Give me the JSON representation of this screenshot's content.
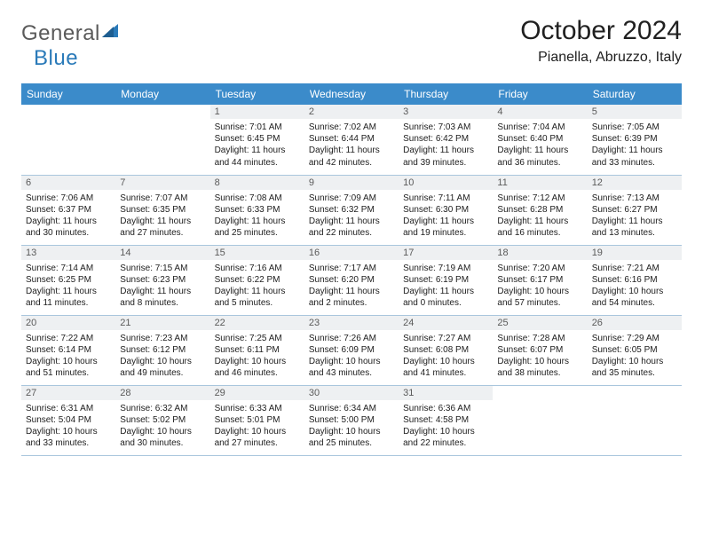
{
  "brand": {
    "word1": "General",
    "word2": "Blue"
  },
  "title": "October 2024",
  "location": "Pianella, Abruzzo, Italy",
  "colors": {
    "header_bg": "#3b8bca",
    "header_fg": "#ffffff",
    "daynum_bg": "#eef0f2",
    "daynum_fg": "#5a5a5a",
    "row_border": "#a9c6dd",
    "text": "#202020",
    "logo_gray": "#5a5a5a",
    "logo_blue": "#2a7ab9",
    "page_bg": "#ffffff"
  },
  "typography": {
    "title_fontsize": 30,
    "location_fontsize": 16,
    "dayhead_fontsize": 12,
    "body_fontsize": 10
  },
  "dayNames": [
    "Sunday",
    "Monday",
    "Tuesday",
    "Wednesday",
    "Thursday",
    "Friday",
    "Saturday"
  ],
  "weeks": [
    [
      {
        "empty": true
      },
      {
        "empty": true
      },
      {
        "n": "1",
        "sr": "Sunrise: 7:01 AM",
        "ss": "Sunset: 6:45 PM",
        "d1": "Daylight: 11 hours",
        "d2": "and 44 minutes."
      },
      {
        "n": "2",
        "sr": "Sunrise: 7:02 AM",
        "ss": "Sunset: 6:44 PM",
        "d1": "Daylight: 11 hours",
        "d2": "and 42 minutes."
      },
      {
        "n": "3",
        "sr": "Sunrise: 7:03 AM",
        "ss": "Sunset: 6:42 PM",
        "d1": "Daylight: 11 hours",
        "d2": "and 39 minutes."
      },
      {
        "n": "4",
        "sr": "Sunrise: 7:04 AM",
        "ss": "Sunset: 6:40 PM",
        "d1": "Daylight: 11 hours",
        "d2": "and 36 minutes."
      },
      {
        "n": "5",
        "sr": "Sunrise: 7:05 AM",
        "ss": "Sunset: 6:39 PM",
        "d1": "Daylight: 11 hours",
        "d2": "and 33 minutes."
      }
    ],
    [
      {
        "n": "6",
        "sr": "Sunrise: 7:06 AM",
        "ss": "Sunset: 6:37 PM",
        "d1": "Daylight: 11 hours",
        "d2": "and 30 minutes."
      },
      {
        "n": "7",
        "sr": "Sunrise: 7:07 AM",
        "ss": "Sunset: 6:35 PM",
        "d1": "Daylight: 11 hours",
        "d2": "and 27 minutes."
      },
      {
        "n": "8",
        "sr": "Sunrise: 7:08 AM",
        "ss": "Sunset: 6:33 PM",
        "d1": "Daylight: 11 hours",
        "d2": "and 25 minutes."
      },
      {
        "n": "9",
        "sr": "Sunrise: 7:09 AM",
        "ss": "Sunset: 6:32 PM",
        "d1": "Daylight: 11 hours",
        "d2": "and 22 minutes."
      },
      {
        "n": "10",
        "sr": "Sunrise: 7:11 AM",
        "ss": "Sunset: 6:30 PM",
        "d1": "Daylight: 11 hours",
        "d2": "and 19 minutes."
      },
      {
        "n": "11",
        "sr": "Sunrise: 7:12 AM",
        "ss": "Sunset: 6:28 PM",
        "d1": "Daylight: 11 hours",
        "d2": "and 16 minutes."
      },
      {
        "n": "12",
        "sr": "Sunrise: 7:13 AM",
        "ss": "Sunset: 6:27 PM",
        "d1": "Daylight: 11 hours",
        "d2": "and 13 minutes."
      }
    ],
    [
      {
        "n": "13",
        "sr": "Sunrise: 7:14 AM",
        "ss": "Sunset: 6:25 PM",
        "d1": "Daylight: 11 hours",
        "d2": "and 11 minutes."
      },
      {
        "n": "14",
        "sr": "Sunrise: 7:15 AM",
        "ss": "Sunset: 6:23 PM",
        "d1": "Daylight: 11 hours",
        "d2": "and 8 minutes."
      },
      {
        "n": "15",
        "sr": "Sunrise: 7:16 AM",
        "ss": "Sunset: 6:22 PM",
        "d1": "Daylight: 11 hours",
        "d2": "and 5 minutes."
      },
      {
        "n": "16",
        "sr": "Sunrise: 7:17 AM",
        "ss": "Sunset: 6:20 PM",
        "d1": "Daylight: 11 hours",
        "d2": "and 2 minutes."
      },
      {
        "n": "17",
        "sr": "Sunrise: 7:19 AM",
        "ss": "Sunset: 6:19 PM",
        "d1": "Daylight: 11 hours",
        "d2": "and 0 minutes."
      },
      {
        "n": "18",
        "sr": "Sunrise: 7:20 AM",
        "ss": "Sunset: 6:17 PM",
        "d1": "Daylight: 10 hours",
        "d2": "and 57 minutes."
      },
      {
        "n": "19",
        "sr": "Sunrise: 7:21 AM",
        "ss": "Sunset: 6:16 PM",
        "d1": "Daylight: 10 hours",
        "d2": "and 54 minutes."
      }
    ],
    [
      {
        "n": "20",
        "sr": "Sunrise: 7:22 AM",
        "ss": "Sunset: 6:14 PM",
        "d1": "Daylight: 10 hours",
        "d2": "and 51 minutes."
      },
      {
        "n": "21",
        "sr": "Sunrise: 7:23 AM",
        "ss": "Sunset: 6:12 PM",
        "d1": "Daylight: 10 hours",
        "d2": "and 49 minutes."
      },
      {
        "n": "22",
        "sr": "Sunrise: 7:25 AM",
        "ss": "Sunset: 6:11 PM",
        "d1": "Daylight: 10 hours",
        "d2": "and 46 minutes."
      },
      {
        "n": "23",
        "sr": "Sunrise: 7:26 AM",
        "ss": "Sunset: 6:09 PM",
        "d1": "Daylight: 10 hours",
        "d2": "and 43 minutes."
      },
      {
        "n": "24",
        "sr": "Sunrise: 7:27 AM",
        "ss": "Sunset: 6:08 PM",
        "d1": "Daylight: 10 hours",
        "d2": "and 41 minutes."
      },
      {
        "n": "25",
        "sr": "Sunrise: 7:28 AM",
        "ss": "Sunset: 6:07 PM",
        "d1": "Daylight: 10 hours",
        "d2": "and 38 minutes."
      },
      {
        "n": "26",
        "sr": "Sunrise: 7:29 AM",
        "ss": "Sunset: 6:05 PM",
        "d1": "Daylight: 10 hours",
        "d2": "and 35 minutes."
      }
    ],
    [
      {
        "n": "27",
        "sr": "Sunrise: 6:31 AM",
        "ss": "Sunset: 5:04 PM",
        "d1": "Daylight: 10 hours",
        "d2": "and 33 minutes."
      },
      {
        "n": "28",
        "sr": "Sunrise: 6:32 AM",
        "ss": "Sunset: 5:02 PM",
        "d1": "Daylight: 10 hours",
        "d2": "and 30 minutes."
      },
      {
        "n": "29",
        "sr": "Sunrise: 6:33 AM",
        "ss": "Sunset: 5:01 PM",
        "d1": "Daylight: 10 hours",
        "d2": "and 27 minutes."
      },
      {
        "n": "30",
        "sr": "Sunrise: 6:34 AM",
        "ss": "Sunset: 5:00 PM",
        "d1": "Daylight: 10 hours",
        "d2": "and 25 minutes."
      },
      {
        "n": "31",
        "sr": "Sunrise: 6:36 AM",
        "ss": "Sunset: 4:58 PM",
        "d1": "Daylight: 10 hours",
        "d2": "and 22 minutes."
      },
      {
        "empty": true
      },
      {
        "empty": true
      }
    ]
  ]
}
